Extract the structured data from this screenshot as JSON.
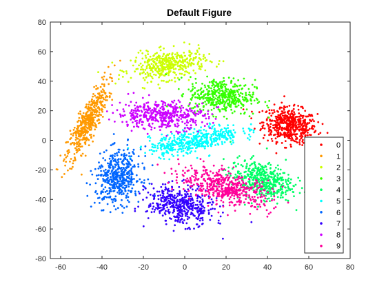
{
  "chart_data": {
    "type": "scatter",
    "title": "Default Figure",
    "xlabel": "",
    "ylabel": "",
    "xlim": [
      -65,
      80
    ],
    "ylim": [
      -80,
      80
    ],
    "xticks": [
      -60,
      -40,
      -20,
      0,
      20,
      40,
      60,
      80
    ],
    "yticks": [
      -80,
      -60,
      -40,
      -20,
      0,
      20,
      40,
      60,
      80
    ],
    "grid": false,
    "legend_position": "bottom-right",
    "series": [
      {
        "name": "0",
        "color": "#ff0000",
        "clusters": [
          {
            "cx": 51,
            "cy": 10,
            "sx": 6.5,
            "sy": 6.0,
            "rho": -0.2,
            "n": 520
          }
        ]
      },
      {
        "name": "1",
        "color": "#ff9900",
        "clusters": [
          {
            "cx": -47,
            "cy": 12,
            "sx": 5.0,
            "sy": 13.5,
            "rho": 0.85,
            "n": 480
          }
        ]
      },
      {
        "name": "2",
        "color": "#ccff00",
        "clusters": [
          {
            "cx": -8,
            "cy": 51,
            "sx": 9.0,
            "sy": 5.0,
            "rho": 0.3,
            "n": 420
          }
        ]
      },
      {
        "name": "3",
        "color": "#33ff00",
        "clusters": [
          {
            "cx": 18,
            "cy": 30,
            "sx": 8.0,
            "sy": 6.0,
            "rho": -0.1,
            "n": 440
          }
        ]
      },
      {
        "name": "4",
        "color": "#00ff66",
        "clusters": [
          {
            "cx": 37,
            "cy": -27,
            "sx": 7.5,
            "sy": 6.5,
            "rho": -0.3,
            "n": 460
          }
        ]
      },
      {
        "name": "5",
        "color": "#00ffff",
        "clusters": [
          {
            "cx": 5,
            "cy": 0,
            "sx": 11.0,
            "sy": 5.0,
            "rho": 0.6,
            "n": 440
          }
        ]
      },
      {
        "name": "6",
        "color": "#0066ff",
        "clusters": [
          {
            "cx": -32,
            "cy": -25,
            "sx": 5.5,
            "sy": 9.0,
            "rho": 0.1,
            "n": 480
          }
        ]
      },
      {
        "name": "7",
        "color": "#3300ff",
        "clusters": [
          {
            "cx": -2,
            "cy": -44,
            "sx": 8.0,
            "sy": 6.5,
            "rho": -0.2,
            "n": 460
          }
        ]
      },
      {
        "name": "8",
        "color": "#cc00ff",
        "clusters": [
          {
            "cx": -11,
            "cy": 17,
            "sx": 11.0,
            "sy": 4.8,
            "rho": -0.1,
            "n": 440
          }
        ]
      },
      {
        "name": "9",
        "color": "#ff0099",
        "clusters": [
          {
            "cx": 20,
            "cy": -32,
            "sx": 11.0,
            "sy": 6.5,
            "rho": -0.55,
            "n": 500
          }
        ]
      }
    ]
  }
}
